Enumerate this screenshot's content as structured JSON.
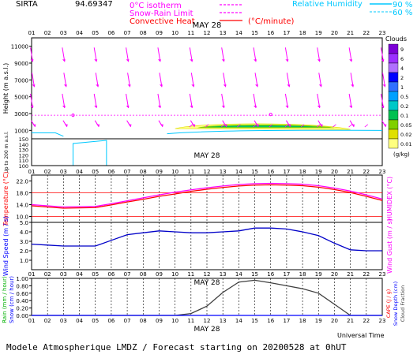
{
  "header": {
    "station": "SIRTA",
    "coords": "94.69347",
    "legend": [
      {
        "label": "0°C isotherm",
        "color": "#ff00ff",
        "style": "dash"
      },
      {
        "label": "Snow-Rain Limit",
        "color": "#ff00ff",
        "style": "dash"
      },
      {
        "label": "Convective Heat",
        "color": "#ff0000",
        "style": "solid",
        "unit": "(°C/minute)"
      }
    ],
    "rh_label": "Relative Humidity",
    "rh_levels": [
      "90 %",
      "60 %"
    ],
    "rh_color": "#00c8ff"
  },
  "footer": {
    "title": "Modele Atmospherique LMDZ / Forecast starting on 20200528 at 0hUT",
    "time_axis_label": "Universal Time"
  },
  "hours": [
    "01",
    "02",
    "03",
    "04",
    "05",
    "06",
    "07",
    "08",
    "09",
    "10",
    "11",
    "12",
    "13",
    "14",
    "15",
    "16",
    "17",
    "18",
    "19",
    "20",
    "21",
    "22",
    "23"
  ],
  "date_label": "MAY 28",
  "clouds_legend": {
    "title": "Clouds",
    "unit": "(g/kg)",
    "levels": [
      "9",
      "6",
      "4",
      "2",
      "1",
      "0.5",
      "0.2",
      "0.1",
      "0.05",
      "0.02",
      "0.01"
    ],
    "colors": [
      "#7b00d6",
      "#9b30ff",
      "#b070ff",
      "#0000ff",
      "#3070ff",
      "#00a0ff",
      "#00c8c8",
      "#00c050",
      "#80d000",
      "#e0e000",
      "#ffff80"
    ]
  },
  "panels": {
    "height": {
      "ylabel": "Height  (m  a.s.l.)",
      "yticks": [
        "11000",
        "9000",
        "7000",
        "5000",
        "3000",
        "1000"
      ],
      "low_ylabel": "Up to 200 m a.s.l.",
      "low_yticks": [
        "150",
        "140",
        "130",
        "120",
        "110",
        "100"
      ]
    },
    "temperature": {
      "ylabel": "Temperature (°C)",
      "right_label": "HUMIDEX (°C)",
      "yticks": [
        "22.0",
        "18.0",
        "14.0",
        "10.0"
      ]
    },
    "wind": {
      "ylabel": "Wind Speed (m / s)",
      "right_label": "Wind Gust (m / s)",
      "yticks": [
        "5.0",
        "4.0",
        "3.0",
        "2.0",
        "1.0"
      ]
    },
    "rain": {
      "ylabel_rain": "Rain (mm / hour)",
      "ylabel_snow": "Snow (cm / hour)",
      "right_labels": [
        "CAPE (J / g)",
        "Snow Depth (cm)",
        "Cloud Fraction"
      ],
      "yticks": [
        "1.00",
        "0.80",
        "0.60",
        "0.40",
        "0.20",
        "0.00"
      ]
    }
  },
  "chart_data": [
    {
      "type": "line",
      "title": "Temperature",
      "x": [
        "01",
        "02",
        "03",
        "04",
        "05",
        "06",
        "07",
        "08",
        "09",
        "10",
        "11",
        "12",
        "13",
        "14",
        "15",
        "16",
        "17",
        "18",
        "19",
        "20",
        "21",
        "22",
        "23"
      ],
      "ylim": [
        8,
        24
      ],
      "series": [
        {
          "name": "Temperature",
          "color": "#ff0000",
          "values": [
            13.6,
            13.2,
            12.8,
            12.9,
            13.0,
            13.9,
            14.9,
            15.8,
            16.8,
            17.6,
            18.5,
            19.2,
            19.8,
            20.3,
            20.6,
            20.7,
            20.6,
            20.4,
            19.9,
            19.1,
            18.1,
            16.8,
            15.4
          ]
        },
        {
          "name": "HUMIDEX",
          "color": "#ff00ff",
          "values": [
            14.0,
            13.6,
            13.2,
            13.3,
            13.4,
            14.3,
            15.3,
            16.3,
            17.3,
            18.2,
            19.0,
            19.7,
            20.3,
            20.8,
            21.1,
            21.2,
            21.1,
            20.9,
            20.4,
            19.6,
            18.6,
            17.3,
            15.9
          ]
        }
      ],
      "reference_lines": [
        18.0,
        10.0
      ]
    },
    {
      "type": "line",
      "title": "Wind",
      "x": [
        "01",
        "02",
        "03",
        "04",
        "05",
        "06",
        "07",
        "08",
        "09",
        "10",
        "11",
        "12",
        "13",
        "14",
        "15",
        "16",
        "17",
        "18",
        "19",
        "20",
        "21",
        "22",
        "23"
      ],
      "ylim": [
        0,
        5
      ],
      "series": [
        {
          "name": "Wind Speed",
          "color": "#0000c8",
          "values": [
            2.7,
            2.6,
            2.5,
            2.5,
            2.5,
            3.1,
            3.7,
            3.9,
            4.1,
            4.0,
            3.9,
            3.9,
            4.0,
            4.1,
            4.4,
            4.4,
            4.3,
            4.0,
            3.6,
            2.8,
            2.1,
            2.0,
            2.0
          ]
        }
      ]
    },
    {
      "type": "line",
      "title": "Rain",
      "x": [
        "01",
        "02",
        "03",
        "04",
        "05",
        "06",
        "07",
        "08",
        "09",
        "10",
        "11",
        "12",
        "13",
        "14",
        "15",
        "16",
        "17",
        "18",
        "19",
        "20",
        "21",
        "22",
        "23"
      ],
      "ylim": [
        0,
        1
      ],
      "series": [
        {
          "name": "CAPE",
          "color": "#404040",
          "values": [
            0,
            0,
            0,
            0,
            0,
            0,
            0,
            0,
            0,
            0,
            0.05,
            0.25,
            0.62,
            0.9,
            0.95,
            0.88,
            0.8,
            0.72,
            0.6,
            0.3,
            0.0,
            0.0,
            0.0
          ]
        },
        {
          "name": "Rain",
          "color": "#0000ff",
          "values": [
            0,
            0,
            0,
            0,
            0,
            0,
            0,
            0,
            0,
            0,
            0,
            0,
            0,
            0,
            0,
            0,
            0,
            0,
            0,
            0,
            0,
            0,
            0
          ]
        }
      ]
    },
    {
      "type": "heatmap",
      "title": "Height",
      "x": [
        "01",
        "02",
        "03",
        "04",
        "05",
        "06",
        "07",
        "08",
        "09",
        "10",
        "11",
        "12",
        "13",
        "14",
        "15",
        "16",
        "17",
        "18",
        "19",
        "20",
        "21",
        "22",
        "23"
      ],
      "ylim": [
        0,
        12000
      ],
      "freezing_level_m": 2800,
      "cloud_layer": {
        "x_from": "10",
        "x_to": "21",
        "base_m": 1200,
        "top_m": 2000,
        "max_value": 0.1
      },
      "wind_arrows": "southward, decreasing with height"
    }
  ]
}
